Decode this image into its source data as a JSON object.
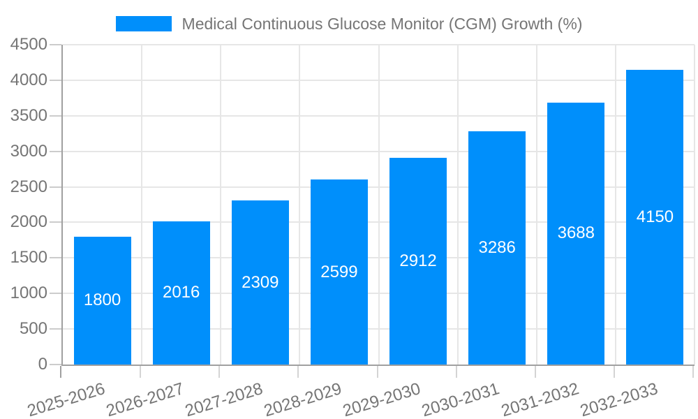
{
  "legend": {
    "swatch_color": "#008FFB",
    "label": "Medical Continuous Glucose Monitor (CGM) Growth (%)"
  },
  "chart_data": {
    "type": "bar",
    "title": "",
    "series_name": "Medical Continuous Glucose Monitor (CGM) Growth (%)",
    "categories": [
      "2025-2026",
      "2026-2027",
      "2027-2028",
      "2028-2029",
      "2029-2030",
      "2030-2031",
      "2031-2032",
      "2032-2033"
    ],
    "values": [
      1800,
      2016,
      2309,
      2599,
      2912,
      3286,
      3688,
      4150
    ],
    "value_labels": [
      "1800",
      "2016",
      "2309",
      "2599",
      "2912",
      "3286",
      "3688",
      "4150"
    ],
    "yticks": [
      0,
      500,
      1000,
      1500,
      2000,
      2500,
      3000,
      3500,
      4000,
      4500
    ],
    "ytick_labels": [
      "0",
      "500",
      "1000",
      "1500",
      "2000",
      "2500",
      "3000",
      "3500",
      "4000",
      "4500"
    ],
    "ylim": [
      0,
      4500
    ],
    "xlabel": "",
    "ylabel": "",
    "grid": true,
    "legend_position": "top",
    "bar_color": "#008FFB",
    "value_label_color": "#ffffff",
    "axis_text_color": "#757575",
    "gridline_color": "#e6e6e6",
    "axis_line_color": "#a0a0a0"
  }
}
